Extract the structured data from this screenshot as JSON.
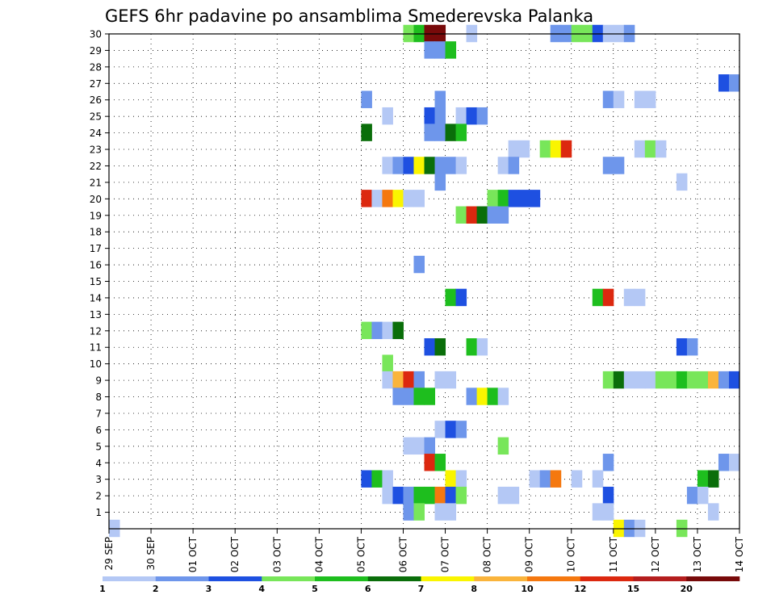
{
  "chart_data": {
    "type": "heatmap",
    "title": "GEFS 6hr padavine po ansamblima Smederevska Palanka",
    "xlabel": "",
    "ylabel": "",
    "x_ticks": [
      "29 SEP",
      "30 SEP",
      "01 OCT",
      "02 OCT",
      "03 OCT",
      "04 OCT",
      "05 OCT",
      "06 OCT",
      "07 OCT",
      "08 OCT",
      "09 OCT",
      "10 OCT",
      "11 OCT",
      "12 OCT",
      "13 OCT",
      "14 OCT"
    ],
    "x_range": [
      "29 SEP",
      "14 OCT"
    ],
    "x_step_hours": 6,
    "y_ticks": [
      "1",
      "2",
      "3",
      "4",
      "5",
      "6",
      "7",
      "8",
      "9",
      "10",
      "11",
      "12",
      "13",
      "14",
      "15",
      "16",
      "17",
      "18",
      "19",
      "20",
      "21",
      "22",
      "23",
      "24",
      "25",
      "26",
      "27",
      "28",
      "29",
      "30"
    ],
    "y_range": [
      0,
      30
    ],
    "grid": true,
    "colorbar": {
      "labels": [
        "1",
        "2",
        "3",
        "4",
        "5",
        "6",
        "7",
        "8",
        "10",
        "12",
        "15",
        "20"
      ],
      "bins": [
        1,
        2,
        3,
        4,
        5,
        6,
        7,
        8,
        10,
        12,
        15,
        20
      ],
      "colors": [
        "#b4c8f5",
        "#6e96eb",
        "#1e50e1",
        "#78e65a",
        "#1ebe1e",
        "#0a6e0a",
        "#faf500",
        "#fab43c",
        "#f5780f",
        "#dc280f",
        "#b41e1e",
        "#780a0a"
      ]
    },
    "cells": [
      [
        30,
        "06 OCT",
        0,
        3
      ],
      [
        30,
        "06 OCT",
        6,
        4
      ],
      [
        30,
        "06 OCT",
        12,
        11
      ],
      [
        30,
        "06 OCT",
        18,
        11
      ],
      [
        30,
        "07 OCT",
        12,
        0
      ],
      [
        30,
        "09 OCT",
        12,
        1
      ],
      [
        30,
        "09 OCT",
        18,
        1
      ],
      [
        30,
        "10 OCT",
        0,
        3
      ],
      [
        30,
        "10 OCT",
        6,
        3
      ],
      [
        30,
        "10 OCT",
        12,
        2
      ],
      [
        30,
        "10 OCT",
        18,
        0
      ],
      [
        30,
        "11 OCT",
        0,
        0
      ],
      [
        30,
        "11 OCT",
        6,
        1
      ],
      [
        29,
        "06 OCT",
        12,
        1
      ],
      [
        29,
        "06 OCT",
        18,
        1
      ],
      [
        29,
        "07 OCT",
        0,
        4
      ],
      [
        27,
        "13 OCT",
        12,
        2
      ],
      [
        27,
        "13 OCT",
        18,
        1
      ],
      [
        26,
        "05 OCT",
        0,
        1
      ],
      [
        26,
        "06 OCT",
        18,
        1
      ],
      [
        26,
        "10 OCT",
        18,
        1
      ],
      [
        26,
        "11 OCT",
        0,
        0
      ],
      [
        26,
        "11 OCT",
        12,
        0
      ],
      [
        26,
        "11 OCT",
        18,
        0
      ],
      [
        25,
        "05 OCT",
        12,
        0
      ],
      [
        25,
        "06 OCT",
        12,
        2
      ],
      [
        25,
        "06 OCT",
        18,
        1
      ],
      [
        25,
        "07 OCT",
        6,
        0
      ],
      [
        25,
        "07 OCT",
        12,
        2
      ],
      [
        25,
        "07 OCT",
        18,
        1
      ],
      [
        24,
        "05 OCT",
        0,
        5
      ],
      [
        24,
        "06 OCT",
        12,
        1
      ],
      [
        24,
        "06 OCT",
        18,
        1
      ],
      [
        24,
        "07 OCT",
        0,
        5
      ],
      [
        24,
        "07 OCT",
        6,
        4
      ],
      [
        23,
        "08 OCT",
        12,
        0
      ],
      [
        23,
        "08 OCT",
        18,
        0
      ],
      [
        23,
        "09 OCT",
        6,
        3
      ],
      [
        23,
        "09 OCT",
        12,
        6
      ],
      [
        23,
        "09 OCT",
        18,
        9
      ],
      [
        23,
        "11 OCT",
        12,
        0
      ],
      [
        23,
        "11 OCT",
        18,
        3
      ],
      [
        23,
        "12 OCT",
        0,
        0
      ],
      [
        22,
        "05 OCT",
        12,
        0
      ],
      [
        22,
        "05 OCT",
        18,
        1
      ],
      [
        22,
        "06 OCT",
        0,
        2
      ],
      [
        22,
        "06 OCT",
        6,
        6
      ],
      [
        22,
        "06 OCT",
        12,
        5
      ],
      [
        22,
        "06 OCT",
        18,
        1
      ],
      [
        22,
        "07 OCT",
        0,
        1
      ],
      [
        22,
        "07 OCT",
        6,
        0
      ],
      [
        22,
        "08 OCT",
        6,
        0
      ],
      [
        22,
        "08 OCT",
        12,
        1
      ],
      [
        22,
        "10 OCT",
        18,
        1
      ],
      [
        22,
        "11 OCT",
        0,
        1
      ],
      [
        21,
        "06 OCT",
        18,
        1
      ],
      [
        21,
        "12 OCT",
        12,
        0
      ],
      [
        20,
        "05 OCT",
        0,
        9
      ],
      [
        20,
        "05 OCT",
        6,
        0
      ],
      [
        20,
        "05 OCT",
        12,
        8
      ],
      [
        20,
        "05 OCT",
        18,
        6
      ],
      [
        20,
        "06 OCT",
        0,
        0
      ],
      [
        20,
        "06 OCT",
        6,
        0
      ],
      [
        20,
        "08 OCT",
        0,
        3
      ],
      [
        20,
        "08 OCT",
        6,
        4
      ],
      [
        20,
        "08 OCT",
        12,
        2
      ],
      [
        20,
        "08 OCT",
        18,
        2
      ],
      [
        20,
        "09 OCT",
        0,
        2
      ],
      [
        19,
        "07 OCT",
        6,
        3
      ],
      [
        19,
        "07 OCT",
        12,
        9
      ],
      [
        19,
        "07 OCT",
        18,
        5
      ],
      [
        19,
        "08 OCT",
        0,
        1
      ],
      [
        19,
        "08 OCT",
        6,
        1
      ],
      [
        16,
        "06 OCT",
        6,
        1
      ],
      [
        14,
        "07 OCT",
        0,
        4
      ],
      [
        14,
        "07 OCT",
        6,
        2
      ],
      [
        14,
        "10 OCT",
        12,
        4
      ],
      [
        14,
        "10 OCT",
        18,
        9
      ],
      [
        14,
        "11 OCT",
        6,
        0
      ],
      [
        14,
        "11 OCT",
        12,
        0
      ],
      [
        12,
        "05 OCT",
        0,
        3
      ],
      [
        12,
        "05 OCT",
        6,
        1
      ],
      [
        12,
        "05 OCT",
        12,
        0
      ],
      [
        12,
        "05 OCT",
        18,
        5
      ],
      [
        11,
        "06 OCT",
        12,
        2
      ],
      [
        11,
        "06 OCT",
        18,
        5
      ],
      [
        11,
        "07 OCT",
        12,
        4
      ],
      [
        11,
        "07 OCT",
        18,
        0
      ],
      [
        11,
        "12 OCT",
        12,
        2
      ],
      [
        11,
        "12 OCT",
        18,
        1
      ],
      [
        10,
        "05 OCT",
        12,
        3
      ],
      [
        9,
        "05 OCT",
        12,
        0
      ],
      [
        9,
        "05 OCT",
        18,
        7
      ],
      [
        9,
        "06 OCT",
        0,
        9
      ],
      [
        9,
        "06 OCT",
        6,
        1
      ],
      [
        9,
        "06 OCT",
        18,
        0
      ],
      [
        9,
        "07 OCT",
        0,
        0
      ],
      [
        9,
        "10 OCT",
        18,
        3
      ],
      [
        9,
        "11 OCT",
        0,
        5
      ],
      [
        9,
        "11 OCT",
        6,
        0
      ],
      [
        9,
        "11 OCT",
        12,
        0
      ],
      [
        9,
        "11 OCT",
        18,
        0
      ],
      [
        9,
        "12 OCT",
        0,
        3
      ],
      [
        9,
        "12 OCT",
        6,
        3
      ],
      [
        9,
        "12 OCT",
        12,
        4
      ],
      [
        9,
        "12 OCT",
        18,
        3
      ],
      [
        9,
        "13 OCT",
        0,
        3
      ],
      [
        9,
        "13 OCT",
        6,
        7
      ],
      [
        9,
        "13 OCT",
        12,
        1
      ],
      [
        9,
        "13 OCT",
        18,
        2
      ],
      [
        8,
        "05 OCT",
        18,
        1
      ],
      [
        8,
        "06 OCT",
        0,
        1
      ],
      [
        8,
        "06 OCT",
        6,
        4
      ],
      [
        8,
        "06 OCT",
        12,
        4
      ],
      [
        8,
        "07 OCT",
        12,
        1
      ],
      [
        8,
        "07 OCT",
        18,
        6
      ],
      [
        8,
        "08 OCT",
        0,
        4
      ],
      [
        8,
        "08 OCT",
        6,
        0
      ],
      [
        6,
        "06 OCT",
        18,
        0
      ],
      [
        6,
        "07 OCT",
        0,
        2
      ],
      [
        6,
        "07 OCT",
        6,
        1
      ],
      [
        5,
        "06 OCT",
        0,
        0
      ],
      [
        5,
        "06 OCT",
        6,
        0
      ],
      [
        5,
        "06 OCT",
        12,
        1
      ],
      [
        5,
        "08 OCT",
        6,
        3
      ],
      [
        4,
        "06 OCT",
        12,
        9
      ],
      [
        4,
        "06 OCT",
        18,
        4
      ],
      [
        4,
        "10 OCT",
        18,
        1
      ],
      [
        4,
        "13 OCT",
        12,
        1
      ],
      [
        4,
        "13 OCT",
        18,
        0
      ],
      [
        3,
        "05 OCT",
        0,
        2
      ],
      [
        3,
        "05 OCT",
        6,
        4
      ],
      [
        3,
        "05 OCT",
        12,
        0
      ],
      [
        3,
        "07 OCT",
        0,
        6
      ],
      [
        3,
        "07 OCT",
        6,
        0
      ],
      [
        3,
        "09 OCT",
        0,
        0
      ],
      [
        3,
        "09 OCT",
        6,
        1
      ],
      [
        3,
        "09 OCT",
        12,
        8
      ],
      [
        3,
        "10 OCT",
        0,
        0
      ],
      [
        3,
        "10 OCT",
        12,
        0
      ],
      [
        3,
        "13 OCT",
        0,
        4
      ],
      [
        3,
        "13 OCT",
        6,
        5
      ],
      [
        2,
        "05 OCT",
        12,
        0
      ],
      [
        2,
        "05 OCT",
        18,
        2
      ],
      [
        2,
        "06 OCT",
        0,
        1
      ],
      [
        2,
        "06 OCT",
        6,
        4
      ],
      [
        2,
        "06 OCT",
        12,
        4
      ],
      [
        2,
        "06 OCT",
        18,
        8
      ],
      [
        2,
        "07 OCT",
        0,
        2
      ],
      [
        2,
        "07 OCT",
        6,
        3
      ],
      [
        2,
        "08 OCT",
        6,
        0
      ],
      [
        2,
        "08 OCT",
        12,
        0
      ],
      [
        2,
        "10 OCT",
        18,
        2
      ],
      [
        2,
        "12 OCT",
        18,
        1
      ],
      [
        2,
        "13 OCT",
        0,
        0
      ],
      [
        1,
        "06 OCT",
        0,
        1
      ],
      [
        1,
        "06 OCT",
        6,
        3
      ],
      [
        1,
        "06 OCT",
        18,
        0
      ],
      [
        1,
        "07 OCT",
        0,
        0
      ],
      [
        1,
        "10 OCT",
        12,
        0
      ],
      [
        1,
        "10 OCT",
        18,
        0
      ],
      [
        1,
        "13 OCT",
        6,
        0
      ],
      [
        0,
        "29 SEP",
        0,
        0
      ],
      [
        0,
        "11 OCT",
        0,
        6
      ],
      [
        0,
        "11 OCT",
        6,
        1
      ],
      [
        0,
        "11 OCT",
        12,
        0
      ],
      [
        0,
        "12 OCT",
        12,
        3
      ]
    ]
  }
}
